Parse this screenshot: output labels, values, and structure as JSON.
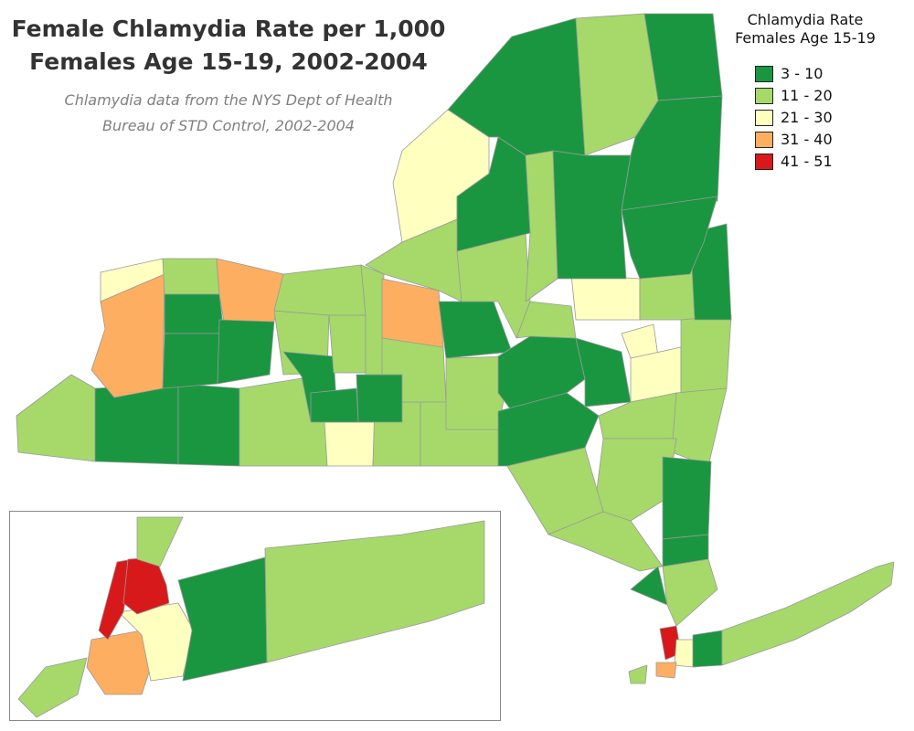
{
  "title_lines": [
    "Female Chlamydia Rate per 1,000",
    "Females Age 15-19, 2002-2004"
  ],
  "subtitle_lines": [
    "Chlamydia data from the NYS Dept of Health",
    "Bureau of STD Control, 2002-2004"
  ],
  "legend": {
    "title_lines": [
      "Chlamydia Rate",
      "Females Age 15-19"
    ],
    "classes": [
      {
        "label": "3 - 10",
        "color": "#1a9641"
      },
      {
        "label": "11 - 20",
        "color": "#a6d96a"
      },
      {
        "label": "21 - 30",
        "color": "#ffffc0"
      },
      {
        "label": "31 - 40",
        "color": "#fdae61"
      },
      {
        "label": "41 - 51",
        "color": "#d7191c"
      }
    ]
  },
  "map": {
    "border_color": "#999999",
    "outline_color": "#555555"
  }
}
